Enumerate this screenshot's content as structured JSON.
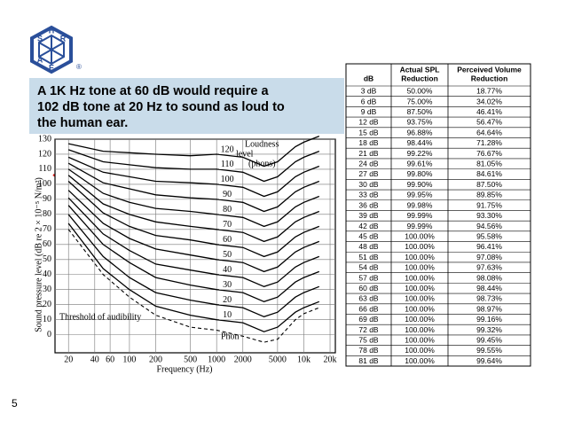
{
  "logo": {
    "letters": [
      "S",
      "H",
      "R",
      "A",
      "E"
    ],
    "mark": "®"
  },
  "callout": [
    "A 1K Hz tone at 60 dB would require a",
    "102 dB tone at 20 Hz to sound as loud to",
    "the human ear."
  ],
  "page_number": "5",
  "chart_data": {
    "type": "line",
    "x_label": "Frequency (Hz)",
    "y_label": "Sound pressure level (dB re 2 × 10⁻⁵ N/m²)",
    "log_x": true,
    "grid": true,
    "xlim": [
      14,
      23000
    ],
    "ylim": [
      -12,
      130
    ],
    "xticks": [
      20,
      40,
      60,
      100,
      200,
      500,
      1000,
      2000,
      5000,
      {
        "value": 10000,
        "label": "10k"
      },
      {
        "value": 20000,
        "label": "20k"
      }
    ],
    "yticks": [
      0,
      10,
      20,
      30,
      40,
      50,
      60,
      70,
      80,
      90,
      100,
      110,
      120,
      130
    ],
    "annotations": {
      "legend_title": [
        "Loudness",
        "level",
        "(phons)"
      ],
      "phon": "Phon"
    },
    "x": [
      20,
      50,
      100,
      200,
      500,
      1000,
      2000,
      3500,
      5000,
      8000,
      10000,
      15000
    ],
    "series": [
      {
        "name": "120",
        "color": "#000000",
        "values": [
          127,
          122,
          121,
          120,
          119,
          120,
          118,
          112,
          115,
          125,
          128,
          132
        ]
      },
      {
        "name": "110",
        "color": "#000000",
        "values": [
          123,
          115,
          113,
          111,
          110,
          110,
          108,
          102,
          105,
          115,
          118,
          122
        ]
      },
      {
        "name": "100",
        "color": "#000000",
        "values": [
          118,
          108,
          105,
          102,
          101,
          100,
          98,
          92,
          95,
          105,
          108,
          112
        ]
      },
      {
        "name": "90",
        "color": "#000000",
        "values": [
          114,
          101,
          97,
          93,
          91,
          90,
          88,
          82,
          85,
          95,
          98,
          102
        ]
      },
      {
        "name": "80",
        "color": "#000000",
        "values": [
          110,
          94,
          88,
          84,
          82,
          80,
          78,
          72,
          75,
          85,
          88,
          92
        ]
      },
      {
        "name": "70",
        "color": "#000000",
        "values": [
          106,
          87,
          80,
          75,
          72,
          70,
          68,
          62,
          65,
          75,
          78,
          82
        ]
      },
      {
        "name": "60",
        "color": "#000000",
        "values": [
          102,
          81,
          72,
          66,
          63,
          60,
          58,
          52,
          55,
          65,
          68,
          72
        ]
      },
      {
        "name": "50",
        "color": "#000000",
        "values": [
          96,
          74,
          64,
          57,
          53,
          50,
          48,
          42,
          45,
          55,
          58,
          62
        ]
      },
      {
        "name": "40",
        "color": "#000000",
        "values": [
          91,
          67,
          56,
          47,
          43,
          40,
          38,
          32,
          35,
          45,
          48,
          52
        ]
      },
      {
        "name": "30",
        "color": "#000000",
        "values": [
          86,
          60,
          48,
          38,
          33,
          30,
          28,
          22,
          25,
          35,
          38,
          42
        ]
      },
      {
        "name": "20",
        "color": "#000000",
        "values": [
          80,
          52,
          38,
          28,
          23,
          20,
          18,
          12,
          15,
          25,
          28,
          32
        ]
      },
      {
        "name": "10",
        "color": "#000000",
        "values": [
          74,
          44,
          30,
          19,
          13,
          10,
          8,
          2,
          5,
          15,
          18,
          22
        ]
      },
      {
        "name": "Threshold of audibility",
        "color": "#000000",
        "dashed": true,
        "values": [
          70,
          40,
          25,
          13,
          5,
          3,
          -1,
          -5,
          -3,
          10,
          14,
          18
        ]
      }
    ]
  },
  "table": {
    "header": [
      [
        "dB"
      ],
      [
        "Actual SPL",
        "Reduction"
      ],
      [
        "Perceived Volume",
        "Reduction"
      ]
    ],
    "rows": [
      [
        "3 dB",
        "50.00%",
        "18.77%"
      ],
      [
        "6 dB",
        "75.00%",
        "34.02%"
      ],
      [
        "9 dB",
        "87.50%",
        "46.41%"
      ],
      [
        "12 dB",
        "93.75%",
        "56.47%"
      ],
      [
        "15 dB",
        "96.88%",
        "64.64%"
      ],
      [
        "18 dB",
        "98.44%",
        "71.28%"
      ],
      [
        "21 dB",
        "99.22%",
        "76.67%"
      ],
      [
        "24 dB",
        "99.61%",
        "81.05%"
      ],
      [
        "27 dB",
        "99.80%",
        "84.61%"
      ],
      [
        "30 dB",
        "99.90%",
        "87.50%"
      ],
      [
        "33 dB",
        "99.95%",
        "89.85%"
      ],
      [
        "36 dB",
        "99.98%",
        "91.75%"
      ],
      [
        "39 dB",
        "99.99%",
        "93.30%"
      ],
      [
        "42 dB",
        "99.99%",
        "94.56%"
      ],
      [
        "45 dB",
        "100.00%",
        "95.58%"
      ],
      [
        "48 dB",
        "100.00%",
        "96.41%"
      ],
      [
        "51 dB",
        "100.00%",
        "97.08%"
      ],
      [
        "54 dB",
        "100.00%",
        "97.63%"
      ],
      [
        "57 dB",
        "100.00%",
        "98.08%"
      ],
      [
        "60 dB",
        "100.00%",
        "98.44%"
      ],
      [
        "63 dB",
        "100.00%",
        "98.73%"
      ],
      [
        "66 dB",
        "100.00%",
        "98.97%"
      ],
      [
        "69 dB",
        "100.00%",
        "99.16%"
      ],
      [
        "72 dB",
        "100.00%",
        "99.32%"
      ],
      [
        "75 dB",
        "100.00%",
        "99.45%"
      ],
      [
        "78 dB",
        "100.00%",
        "99.55%"
      ],
      [
        "81 dB",
        "100.00%",
        "99.64%"
      ]
    ]
  }
}
